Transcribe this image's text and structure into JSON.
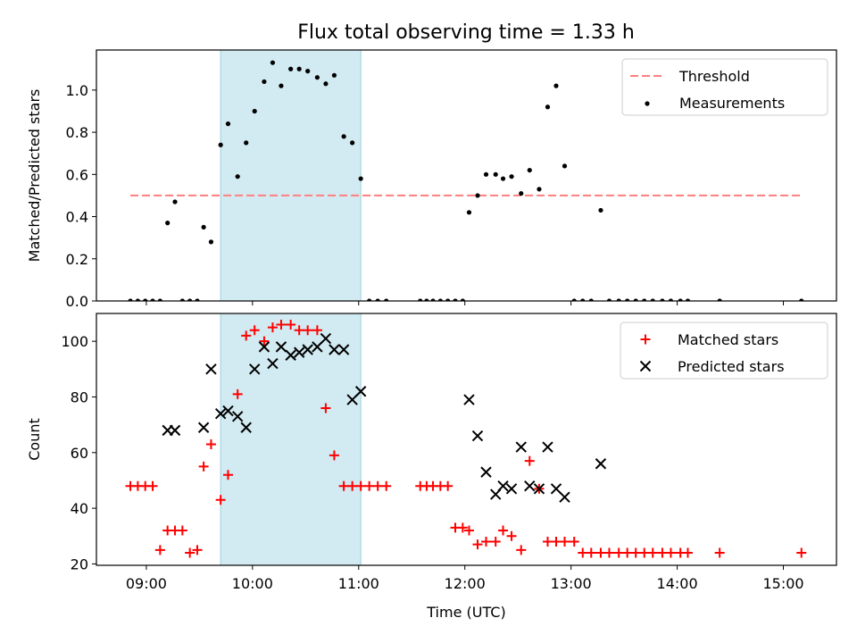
{
  "figure": {
    "title": "Flux total observing time = 1.33 h"
  },
  "chart_data": [
    {
      "type": "scatter",
      "panel": "top",
      "xlabel": "",
      "ylabel": "Matched/Predicted stars",
      "xlim": [
        8.53,
        15.5
      ],
      "ylim": [
        0,
        1.19
      ],
      "yticks": [
        0.0,
        0.2,
        0.4,
        0.6,
        0.8,
        1.0
      ],
      "ytick_labels": [
        "0.0",
        "0.2",
        "0.4",
        "0.6",
        "0.8",
        "1.0"
      ],
      "xticks": [
        9,
        10,
        11,
        12,
        13,
        14,
        15
      ],
      "grid": false,
      "legend": "top-right",
      "legend_entries": [
        "Threshold",
        "Measurements"
      ],
      "shaded_interval": {
        "x0": 9.7,
        "x1": 11.02,
        "color": "#add8e6"
      },
      "threshold": {
        "name": "Threshold",
        "y": 0.5,
        "x_start": 8.85,
        "x_end": 15.17,
        "color": "#ff7f7f"
      },
      "series": [
        {
          "name": "Measurements",
          "color": "#000000",
          "marker": "dot",
          "x": [
            8.85,
            8.92,
            8.99,
            9.06,
            9.13,
            9.2,
            9.27,
            9.34,
            9.41,
            9.48,
            9.54,
            9.61,
            9.7,
            9.77,
            9.86,
            9.94,
            10.02,
            10.11,
            10.19,
            10.27,
            10.36,
            10.44,
            10.52,
            10.61,
            10.69,
            10.77,
            10.86,
            10.94,
            11.02,
            11.1,
            11.18,
            11.26,
            11.58,
            11.64,
            11.7,
            11.77,
            11.84,
            11.91,
            11.98,
            12.04,
            12.12,
            12.2,
            12.29,
            12.36,
            12.44,
            12.53,
            12.61,
            12.7,
            12.78,
            12.86,
            12.94,
            13.03,
            13.11,
            13.19,
            13.28,
            13.36,
            13.45,
            13.53,
            13.61,
            13.69,
            13.77,
            13.86,
            13.94,
            14.03,
            14.1,
            14.4,
            15.17
          ],
          "y": [
            0,
            0,
            0,
            0,
            0,
            0.37,
            0.47,
            0,
            0,
            0,
            0.35,
            0.28,
            0.74,
            0.84,
            0.59,
            0.75,
            0.9,
            1.04,
            1.13,
            1.02,
            1.1,
            1.1,
            1.09,
            1.06,
            1.03,
            1.07,
            0.78,
            0.75,
            0.58,
            0,
            0,
            0,
            0,
            0,
            0,
            0,
            0,
            0,
            0,
            0.42,
            0.5,
            0.6,
            0.6,
            0.58,
            0.59,
            0.51,
            0.62,
            0.53,
            0.92,
            1.02,
            0.64,
            0,
            0,
            0,
            0.43,
            0,
            0,
            0,
            0,
            0,
            0,
            0,
            0,
            0,
            0,
            0,
            0
          ]
        }
      ]
    },
    {
      "type": "scatter",
      "panel": "bottom",
      "xlabel": "Time (UTC)",
      "ylabel": "Count",
      "xlim": [
        8.53,
        15.5
      ],
      "ylim": [
        19.5,
        110
      ],
      "yticks": [
        20,
        40,
        60,
        80,
        100
      ],
      "ytick_labels": [
        "20",
        "40",
        "60",
        "80",
        "100"
      ],
      "xticks": [
        9,
        10,
        11,
        12,
        13,
        14,
        15
      ],
      "xtick_labels": [
        "09:00",
        "10:00",
        "11:00",
        "12:00",
        "13:00",
        "14:00",
        "15:00"
      ],
      "grid": false,
      "legend": "top-right",
      "legend_entries": [
        "Matched stars",
        "Predicted stars"
      ],
      "shaded_interval": {
        "x0": 9.7,
        "x1": 11.02,
        "color": "#add8e6"
      },
      "series": [
        {
          "name": "Matched stars",
          "color": "#ff0000",
          "marker": "plus",
          "x": [
            8.85,
            8.92,
            8.99,
            9.06,
            9.13,
            9.2,
            9.27,
            9.34,
            9.41,
            9.48,
            9.54,
            9.61,
            9.7,
            9.77,
            9.86,
            9.94,
            10.02,
            10.11,
            10.19,
            10.27,
            10.36,
            10.44,
            10.52,
            10.61,
            10.69,
            10.77,
            10.86,
            10.94,
            11.02,
            11.1,
            11.18,
            11.26,
            11.58,
            11.64,
            11.7,
            11.77,
            11.84,
            11.91,
            11.98,
            12.04,
            12.12,
            12.2,
            12.29,
            12.36,
            12.44,
            12.53,
            12.61,
            12.7,
            12.78,
            12.86,
            12.94,
            13.03,
            13.11,
            13.19,
            13.28,
            13.36,
            13.45,
            13.53,
            13.61,
            13.69,
            13.77,
            13.86,
            13.94,
            14.03,
            14.1,
            14.4,
            15.17
          ],
          "y": [
            48,
            48,
            48,
            48,
            25,
            32,
            32,
            32,
            24,
            25,
            55,
            63,
            43,
            52,
            81,
            102,
            104,
            100,
            105,
            106,
            106,
            104,
            104,
            104,
            76,
            59,
            48,
            48,
            48,
            48,
            48,
            48,
            48,
            48,
            48,
            48,
            48,
            33,
            33,
            32,
            27,
            28,
            28,
            32,
            30,
            25,
            57,
            47,
            28,
            28,
            28,
            28,
            24,
            24,
            24,
            24,
            24,
            24,
            24,
            24,
            24,
            24,
            24,
            24,
            24,
            24,
            24
          ]
        },
        {
          "name": "Predicted stars",
          "color": "#000000",
          "marker": "x",
          "x": [
            9.2,
            9.27,
            9.54,
            9.61,
            9.7,
            9.77,
            9.86,
            9.94,
            10.02,
            10.11,
            10.19,
            10.27,
            10.36,
            10.44,
            10.52,
            10.61,
            10.69,
            10.77,
            10.86,
            10.94,
            11.02,
            12.04,
            12.12,
            12.2,
            12.29,
            12.36,
            12.44,
            12.53,
            12.61,
            12.7,
            12.78,
            12.86,
            12.94,
            13.28
          ],
          "y": [
            68,
            68,
            69,
            90,
            74,
            75,
            73,
            69,
            90,
            98,
            92,
            98,
            95,
            96,
            97,
            98,
            101,
            97,
            97,
            79,
            82,
            79,
            66,
            53,
            45,
            48,
            47,
            62,
            48,
            47,
            62,
            47,
            44,
            56
          ]
        }
      ]
    }
  ]
}
